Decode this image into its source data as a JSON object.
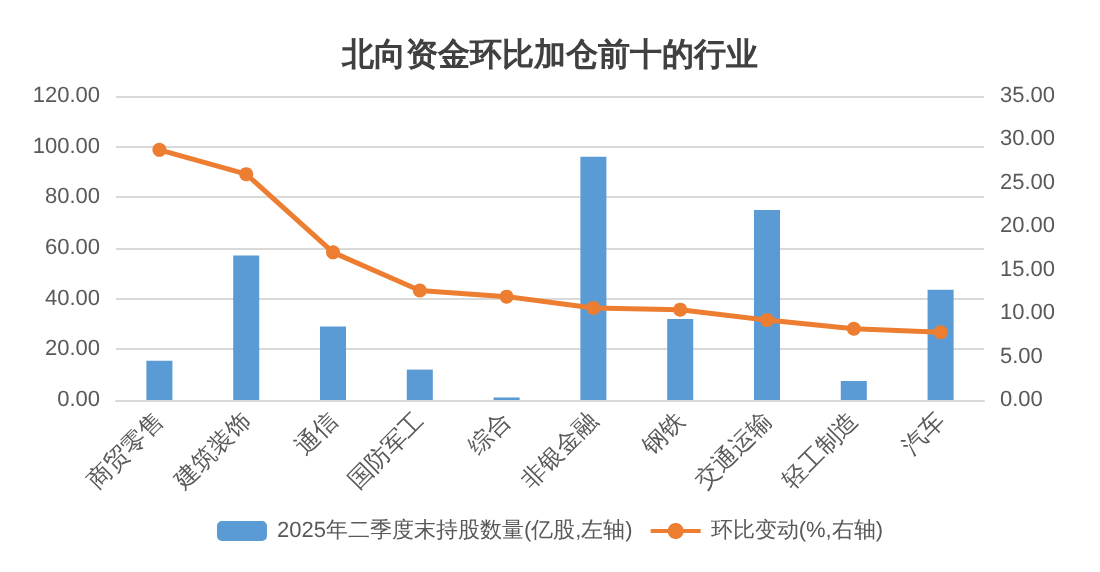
{
  "chart_data": {
    "type": "bar",
    "title": "北向资金环比加仓前十的行业",
    "categories": [
      "商贸零售",
      "建筑装饰",
      "通信",
      "国防军工",
      "综合",
      "非银金融",
      "钢铁",
      "交通运输",
      "轻工制造",
      "汽车"
    ],
    "series": [
      {
        "name": "2025年二季度末持股数量(亿股,左轴)",
        "color": "#5b9bd5",
        "values": [
          15.5,
          57,
          29,
          12,
          1,
          96,
          32,
          75,
          7.5,
          43.5
        ]
      },
      {
        "name": "环比变动(%,右轴)",
        "type": "line",
        "axis": "y2",
        "color": "#ed7d31",
        "marker": "circle",
        "values": [
          28.8,
          26,
          17,
          12.6,
          11.9,
          10.6,
          10.4,
          9.2,
          8.2,
          7.8
        ]
      }
    ],
    "ylim": [
      0,
      120
    ],
    "yticks": [
      {
        "value": 0,
        "label": "0.00"
      },
      {
        "value": 20,
        "label": "20.00"
      },
      {
        "value": 40,
        "label": "40.00"
      },
      {
        "value": 60,
        "label": "60.00"
      },
      {
        "value": 80,
        "label": "80.00"
      },
      {
        "value": 100,
        "label": "100.00"
      },
      {
        "value": 120,
        "label": "120.00"
      }
    ],
    "y2lim": [
      0,
      35
    ],
    "y2ticks": [
      {
        "value": 0,
        "label": "0.00"
      },
      {
        "value": 5,
        "label": "5.00"
      },
      {
        "value": 10,
        "label": "10.00"
      },
      {
        "value": 15,
        "label": "15.00"
      },
      {
        "value": 20,
        "label": "20.00"
      },
      {
        "value": 25,
        "label": "25.00"
      },
      {
        "value": 30,
        "label": "30.00"
      },
      {
        "value": 35,
        "label": "35.00"
      }
    ],
    "grid": "y",
    "legend": "bottom"
  }
}
